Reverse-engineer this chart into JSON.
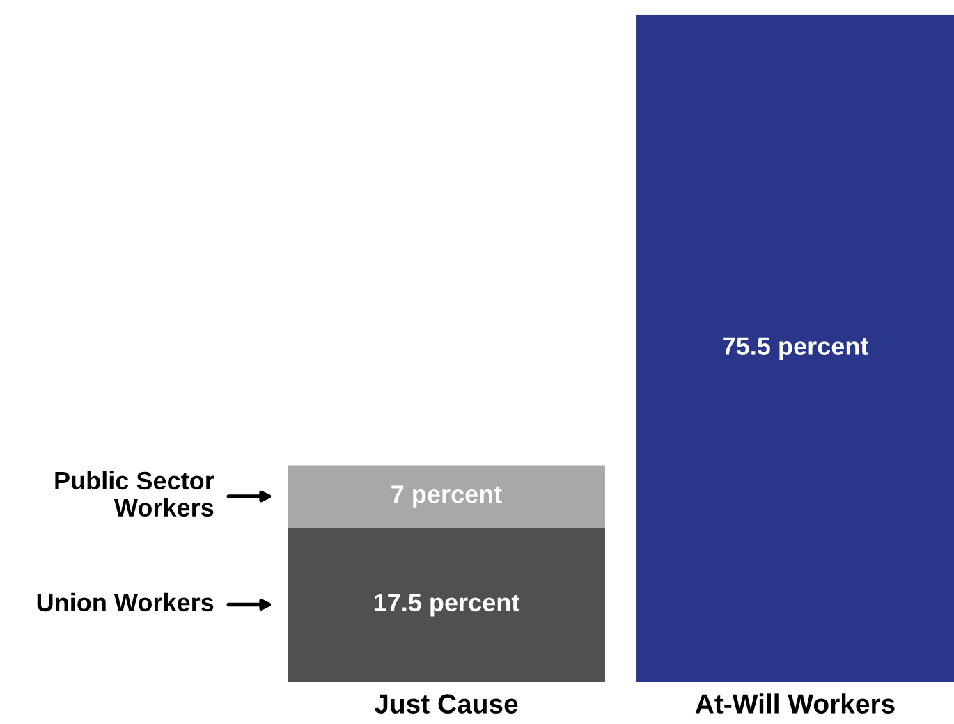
{
  "chart_data": {
    "type": "bar",
    "stacked": true,
    "categories": [
      "Just Cause",
      "At-Will Workers"
    ],
    "legend": "left",
    "tick_labels": "x",
    "series": [
      {
        "name": "Union Workers",
        "color": "#505050",
        "values": [
          17.5,
          null
        ],
        "value_labels": [
          "17.5 percent",
          null
        ]
      },
      {
        "name": "Public Sector Workers",
        "color": "#a8a8a8",
        "values": [
          7,
          null
        ],
        "value_labels": [
          "7 percent",
          null
        ]
      },
      {
        "color": "#2a3689",
        "values": [
          null,
          75.5
        ],
        "value_labels": [
          null,
          "75.5 percent"
        ]
      }
    ]
  }
}
